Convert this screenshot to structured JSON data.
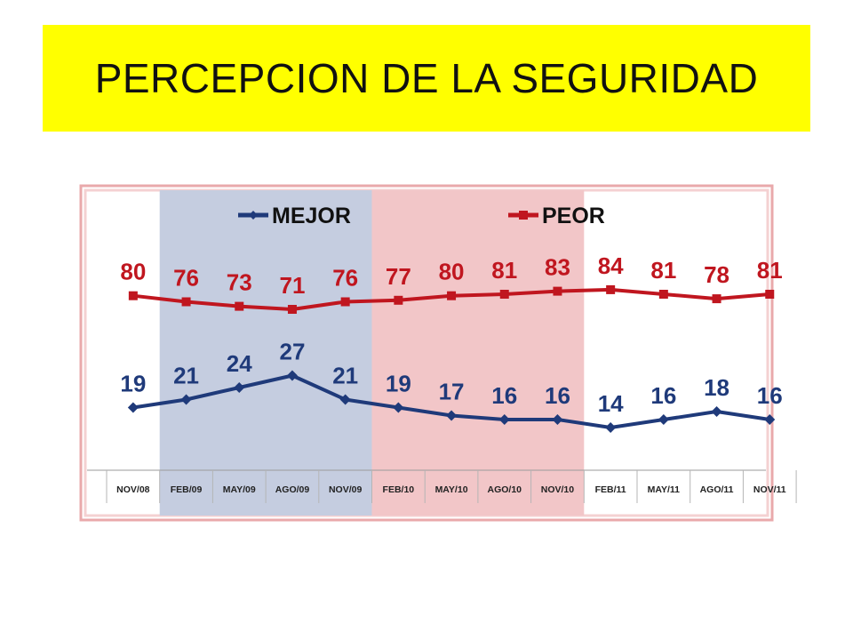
{
  "title": "PERCEPCION DE LA SEGURIDAD",
  "chart_data": {
    "type": "line",
    "categories": [
      "NOV/08",
      "FEB/09",
      "MAY/09",
      "AGO/09",
      "NOV/09",
      "FEB/10",
      "MAY/10",
      "AGO/10",
      "NOV/10",
      "FEB/11",
      "MAY/11",
      "AGO/11",
      "NOV/11"
    ],
    "series": [
      {
        "name": "MEJOR",
        "color": "#1f3a7a",
        "values": [
          19,
          21,
          24,
          27,
          21,
          19,
          17,
          16,
          16,
          14,
          16,
          18,
          16
        ]
      },
      {
        "name": "PEOR",
        "color": "#c0161f",
        "values": [
          80,
          76,
          73,
          71,
          76,
          77,
          80,
          81,
          83,
          84,
          81,
          78,
          81
        ]
      }
    ],
    "legend_position": "top-center",
    "grid": false,
    "shaded_periods": [
      {
        "from": "FEB/09",
        "to": "NOV/09",
        "color": "#c5cde0"
      },
      {
        "from": "FEB/10",
        "to": "NOV/10",
        "color": "#f2c6c8"
      }
    ],
    "xlabel": "",
    "ylabel": ""
  }
}
